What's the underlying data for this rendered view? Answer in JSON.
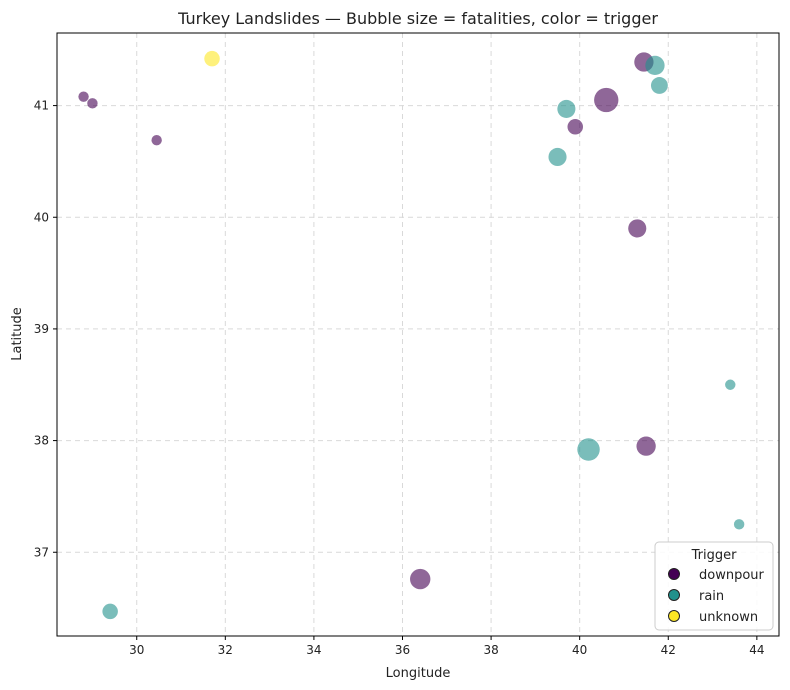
{
  "chart_data": {
    "type": "scatter",
    "title": "Turkey Landslides — Bubble size = fatalities, color = trigger",
    "xlabel": "Longitude",
    "ylabel": "Latitude",
    "xlim": [
      28.2,
      44.5
    ],
    "ylim": [
      36.25,
      41.65
    ],
    "xticks": [
      30,
      32,
      34,
      36,
      38,
      40,
      42,
      44
    ],
    "yticks": [
      37,
      38,
      39,
      40,
      41
    ],
    "grid": true,
    "legend": {
      "title": "Trigger",
      "placement": "bottom-right",
      "entries": [
        {
          "label": "downpour",
          "color": "#440154"
        },
        {
          "label": "rain",
          "color": "#21918c"
        },
        {
          "label": "unknown",
          "color": "#fde725"
        }
      ]
    },
    "series": [
      {
        "name": "downpour",
        "color": "#440154",
        "points": [
          {
            "lon": 28.8,
            "lat": 41.08,
            "fatalities": 1
          },
          {
            "lon": 29.0,
            "lat": 41.02,
            "fatalities": 1
          },
          {
            "lon": 30.45,
            "lat": 40.69,
            "fatalities": 1
          },
          {
            "lon": 39.9,
            "lat": 40.81,
            "fatalities": 4
          },
          {
            "lon": 40.6,
            "lat": 41.05,
            "fatalities": 12
          },
          {
            "lon": 41.3,
            "lat": 39.9,
            "fatalities": 6
          },
          {
            "lon": 41.45,
            "lat": 41.39,
            "fatalities": 7
          },
          {
            "lon": 41.5,
            "lat": 37.95,
            "fatalities": 7
          },
          {
            "lon": 36.4,
            "lat": 36.76,
            "fatalities": 8
          }
        ]
      },
      {
        "name": "rain",
        "color": "#21918c",
        "points": [
          {
            "lon": 39.7,
            "lat": 40.97,
            "fatalities": 6
          },
          {
            "lon": 39.5,
            "lat": 40.54,
            "fatalities": 6
          },
          {
            "lon": 41.7,
            "lat": 41.36,
            "fatalities": 7
          },
          {
            "lon": 41.8,
            "lat": 41.18,
            "fatalities": 5
          },
          {
            "lon": 40.2,
            "lat": 37.92,
            "fatalities": 10
          },
          {
            "lon": 43.4,
            "lat": 38.5,
            "fatalities": 1
          },
          {
            "lon": 43.6,
            "lat": 37.25,
            "fatalities": 1
          },
          {
            "lon": 29.4,
            "lat": 36.47,
            "fatalities": 4
          }
        ]
      },
      {
        "name": "unknown",
        "color": "#fde725",
        "points": [
          {
            "lon": 31.7,
            "lat": 41.42,
            "fatalities": 4
          }
        ]
      }
    ]
  }
}
